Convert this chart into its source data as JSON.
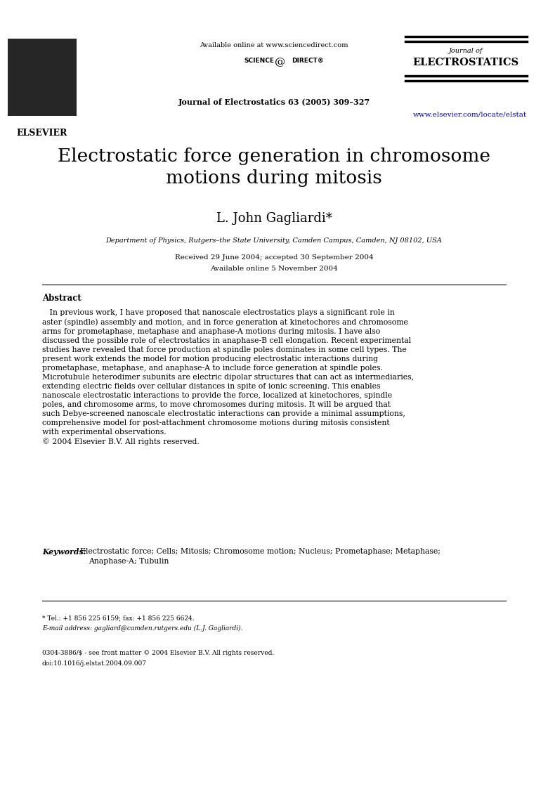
{
  "bg_color": "#ffffff",
  "header": {
    "elsevier_logo_placeholder": true,
    "available_online": "Available online at www.sciencedirect.com",
    "sciencedirect_logo": "SCIENCE DIRECT®",
    "journal_name_top": "Journal of",
    "journal_name_bold": "ELECTROSTATICS",
    "journal_ref": "Journal of Electrostatics 63 (2005) 309–327",
    "url": "www.elsevier.com/locate/elstat"
  },
  "title": "Electrostatic force generation in chromosome\nmotions during mitosis",
  "author": "L. John Gagliardi*",
  "affiliation": "Department of Physics, Rutgers–the State University, Camden Campus, Camden, NJ 08102, USA",
  "received": "Received 29 June 2004; accepted 30 September 2004",
  "available": "Available online 5 November 2004",
  "abstract_label": "Abstract",
  "abstract_text": "In previous work, I have proposed that nanoscale electrostatics plays a significant role in aster (spindle) assembly and motion, and in force generation at kinetochores and chromosome arms for prometaphase, metaphase and anaphase-A motions during mitosis. I have also discussed the possible role of electrostatics in anaphase-B cell elongation. Recent experimental studies have revealed that force production at spindle poles dominates in some cell types. The present work extends the model for motion producing electrostatic interactions during prometaphase, metaphase, and anaphase-A to include force generation at spindle poles. Microtubule heterodimer subunits are electric dipolar structures that can act as intermediaries, extending electric fields over cellular distances in spite of ionic screening. This enables nanoscale electrostatic interactions to provide the force, localized at kinetochores, spindle poles, and chromosome arms, to move chromosomes during mitosis. It will be argued that such Debye-screened nanoscale electrostatic interactions can provide a minimal assumptions, comprehensive model for post-attachment chromosome motions during mitosis consistent with experimental observations.\n© 2004 Elsevier B.V. All rights reserved.",
  "keywords_label": "Keywords:",
  "keywords_text": "Electrostatic force; Cells; Mitosis; Chromosome motion; Nucleus; Prometaphase; Metaphase;\n    Anaphase-A; Tubulin",
  "footnote_star": "*Tel.: +1 856 225 6159; fax: +1 856 225 6624.",
  "footnote_email": "E-mail address: gagliard@camden.rutgers.edu (L.J. Gagliardi).",
  "footer_issn": "0304-3886/$ - see front matter © 2004 Elsevier B.V. All rights reserved.",
  "footer_doi": "doi:10.1016/j.elstat.2004.09.007"
}
